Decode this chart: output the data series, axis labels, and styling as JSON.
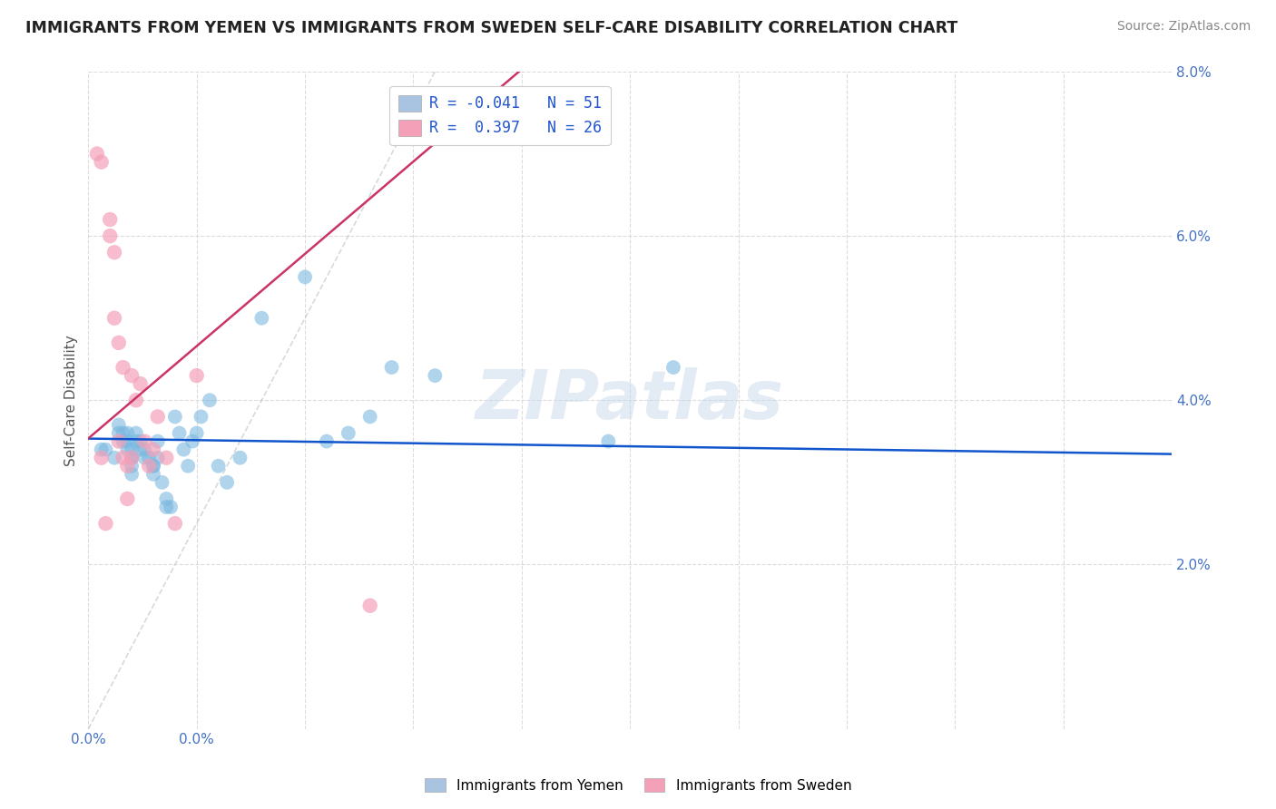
{
  "title": "IMMIGRANTS FROM YEMEN VS IMMIGRANTS FROM SWEDEN SELF-CARE DISABILITY CORRELATION CHART",
  "source": "Source: ZipAtlas.com",
  "ylabel": "Self-Care Disability",
  "xlim": [
    0.0,
    0.25
  ],
  "ylim": [
    0.0,
    0.08
  ],
  "xticks": [
    0.0,
    0.025,
    0.05,
    0.075,
    0.1,
    0.125,
    0.15,
    0.175,
    0.2,
    0.225,
    0.25
  ],
  "xticklabels_show": {
    "0.0": "0.0%"
  },
  "yticks": [
    0.0,
    0.02,
    0.04,
    0.06,
    0.08
  ],
  "yticklabels": [
    "",
    "2.0%",
    "4.0%",
    "6.0%",
    "8.0%"
  ],
  "legend_labels_bottom": [
    "Immigrants from Yemen",
    "Immigrants from Sweden"
  ],
  "watermark": "ZIPatlas",
  "yemen_color": "#7ab8e0",
  "sweden_color": "#f4a0b8",
  "yemen_R": -0.041,
  "sweden_R": 0.397,
  "yemen_N": 51,
  "sweden_N": 26,
  "yemen_trend_color": "#1155cc",
  "sweden_trend_color": "#cc3366",
  "diag_line_color": "#c0c0c0",
  "yemen_points_x": [
    0.003,
    0.004,
    0.006,
    0.007,
    0.007,
    0.008,
    0.008,
    0.009,
    0.009,
    0.009,
    0.01,
    0.01,
    0.01,
    0.01,
    0.01,
    0.011,
    0.011,
    0.012,
    0.012,
    0.013,
    0.013,
    0.014,
    0.015,
    0.015,
    0.015,
    0.016,
    0.016,
    0.017,
    0.018,
    0.018,
    0.019,
    0.02,
    0.021,
    0.022,
    0.023,
    0.024,
    0.025,
    0.026,
    0.028,
    0.03,
    0.032,
    0.035,
    0.04,
    0.05,
    0.055,
    0.06,
    0.065,
    0.07,
    0.08,
    0.12,
    0.135
  ],
  "yemen_points_y": [
    0.034,
    0.034,
    0.033,
    0.037,
    0.036,
    0.036,
    0.035,
    0.036,
    0.035,
    0.034,
    0.034,
    0.033,
    0.033,
    0.032,
    0.031,
    0.036,
    0.035,
    0.035,
    0.034,
    0.034,
    0.033,
    0.033,
    0.032,
    0.032,
    0.031,
    0.035,
    0.033,
    0.03,
    0.028,
    0.027,
    0.027,
    0.038,
    0.036,
    0.034,
    0.032,
    0.035,
    0.036,
    0.038,
    0.04,
    0.032,
    0.03,
    0.033,
    0.05,
    0.055,
    0.035,
    0.036,
    0.038,
    0.044,
    0.043,
    0.035,
    0.044
  ],
  "sweden_points_x": [
    0.002,
    0.003,
    0.003,
    0.004,
    0.005,
    0.005,
    0.006,
    0.006,
    0.007,
    0.007,
    0.008,
    0.008,
    0.009,
    0.009,
    0.01,
    0.01,
    0.011,
    0.012,
    0.013,
    0.014,
    0.015,
    0.016,
    0.018,
    0.02,
    0.025,
    0.065
  ],
  "sweden_points_y": [
    0.07,
    0.069,
    0.033,
    0.025,
    0.062,
    0.06,
    0.058,
    0.05,
    0.047,
    0.035,
    0.044,
    0.033,
    0.032,
    0.028,
    0.043,
    0.033,
    0.04,
    0.042,
    0.035,
    0.032,
    0.034,
    0.038,
    0.033,
    0.025,
    0.043,
    0.015
  ],
  "background_color": "#ffffff",
  "grid_color": "#cccccc",
  "tick_color": "#4472c4",
  "legend_box_color": "#a8c4e0",
  "legend_box_color2": "#f4a0b8"
}
